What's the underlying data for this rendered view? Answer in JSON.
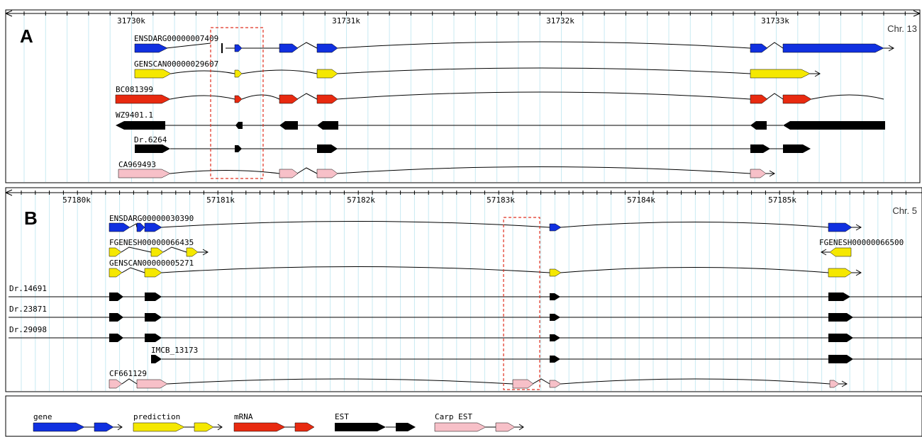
{
  "colors": {
    "gene": "#1030e0",
    "prediction": "#f5e800",
    "mRNA": "#e82a10",
    "EST": "#000000",
    "carp_est": "#f7c0c8",
    "highlight": "#e03020",
    "grid": "#c8eaf2"
  },
  "panels": [
    {
      "id": "A",
      "letter": "A",
      "chromosome": "Chr. 13",
      "ticks": [
        "31730k",
        "31731k",
        "31732k",
        "31733k"
      ],
      "tracks": [
        {
          "label": "ENSDARG00000007409",
          "type": "gene"
        },
        {
          "label": "GENSCAN00000029607",
          "type": "prediction"
        },
        {
          "label": "BC081399",
          "type": "mRNA"
        },
        {
          "label": "WZ9401.1",
          "type": "EST"
        },
        {
          "label": "Dr.6264",
          "type": "EST"
        },
        {
          "label": "CA969493",
          "type": "carp_est"
        }
      ]
    },
    {
      "id": "B",
      "letter": "B",
      "chromosome": "Chr. 5",
      "ticks": [
        "57180k",
        "57181k",
        "57182k",
        "57183k",
        "57184k",
        "57185k"
      ],
      "tracks": [
        {
          "label": "ENSDARG00000030390",
          "type": "gene"
        },
        {
          "label": "FGENESH00000066435",
          "type": "prediction"
        },
        {
          "label": "FGENESH00000066500",
          "type": "prediction"
        },
        {
          "label": "GENSCAN00000005271",
          "type": "prediction"
        },
        {
          "label": "Dr.14691",
          "type": "EST"
        },
        {
          "label": "Dr.23871",
          "type": "EST"
        },
        {
          "label": "Dr.29098",
          "type": "EST"
        },
        {
          "label": "IMCB_13173",
          "type": "EST"
        },
        {
          "label": "CF661129",
          "type": "carp_est"
        }
      ]
    }
  ],
  "legend": [
    {
      "label": "gene",
      "type": "gene"
    },
    {
      "label": "prediction",
      "type": "prediction"
    },
    {
      "label": "mRNA",
      "type": "mRNA"
    },
    {
      "label": "EST",
      "type": "EST"
    },
    {
      "label": "Carp EST",
      "type": "carp_est"
    }
  ]
}
